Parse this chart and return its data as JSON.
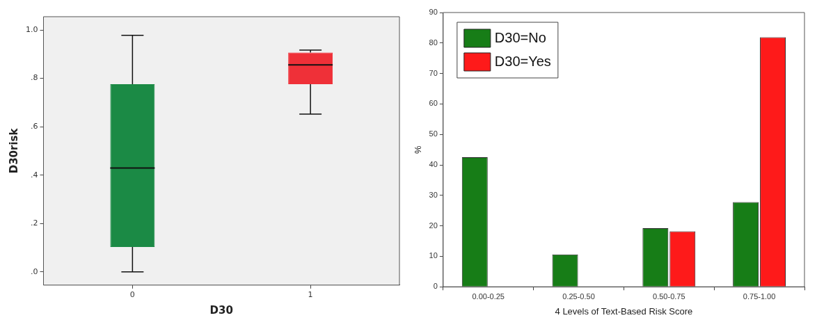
{
  "chart_data": [
    {
      "type": "box",
      "xlabel": "D30",
      "ylabel": "D30risk",
      "categories": [
        "0",
        "1"
      ],
      "colors": [
        "#1b8a45",
        "#ef3038"
      ],
      "boxes": [
        {
          "low": 0,
          "q1": 0.103,
          "median": 0.429,
          "q3": 0.776,
          "high": 0.978
        },
        {
          "low": 0.652,
          "q1": 0.776,
          "median": 0.856,
          "q3": 0.907,
          "high": 0.917
        }
      ],
      "ylim": [
        -0.055,
        1.055
      ],
      "yticks": [
        {
          "value": 0,
          "label": ".0"
        },
        {
          "value": 0.2,
          "label": ".2"
        },
        {
          "value": 0.4,
          "label": ".4"
        },
        {
          "value": 0.6,
          "label": ".6"
        },
        {
          "value": 0.8,
          "label": ".8"
        },
        {
          "value": 1,
          "label": "1.0"
        }
      ],
      "grid": false,
      "legend": false
    },
    {
      "type": "bar",
      "xlabel": "4 Levels of Text-Based Risk Score",
      "ylabel": "%",
      "categories": [
        "0.00-0.25",
        "0.25-0.50",
        "0.50-0.75",
        "0.75-1.00"
      ],
      "series": [
        {
          "name": "D30=No",
          "color": "#177d17",
          "values": [
            42.5,
            10.6,
            19.2,
            27.8
          ]
        },
        {
          "name": "D30=Yes",
          "color": "#fe1a1a",
          "values": [
            0,
            0,
            18.2,
            81.9
          ]
        }
      ],
      "ylim": [
        0,
        90
      ],
      "yticks": [
        0,
        10,
        20,
        30,
        40,
        50,
        60,
        70,
        80,
        90
      ],
      "grid": false,
      "legend": "top left"
    }
  ]
}
